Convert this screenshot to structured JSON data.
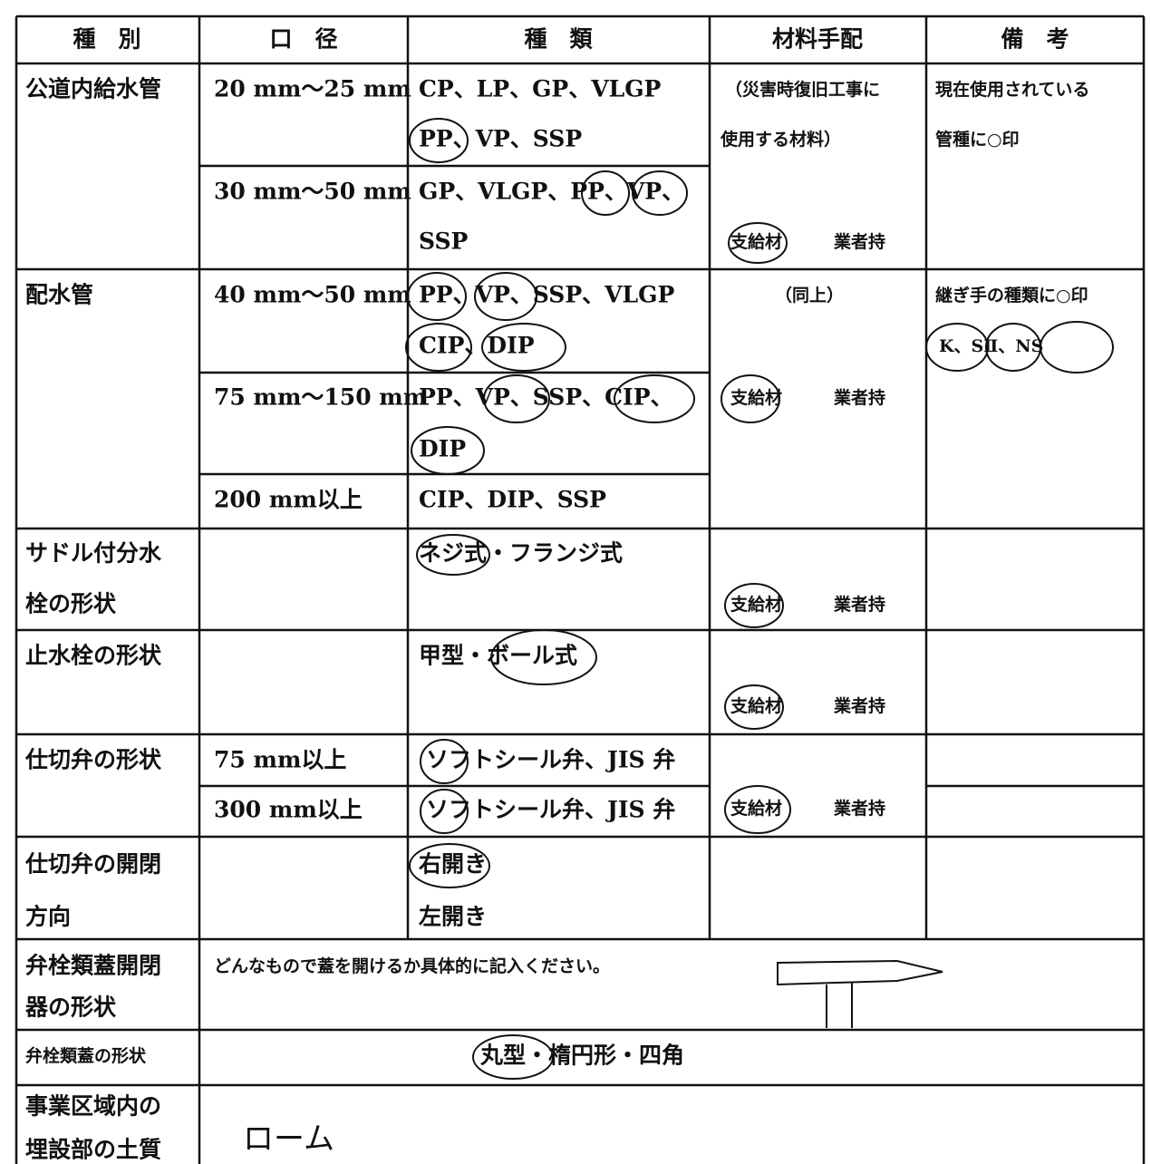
{
  "header": [
    "種　別",
    "口　径",
    "種　類",
    "材料手配",
    "備　考"
  ],
  "rows": [
    {
      "category": "公道内給水管",
      "diameters": [
        "20 mm〜25 mm",
        "30 mm〜50 mm"
      ],
      "types": [
        [
          "CP、LP、GP、VLGP",
          "PP、VP、SSP"
        ],
        [
          "GP、VLGP、PP、VP、",
          "SSP"
        ]
      ],
      "material": [
        "（災害時復旧工事に",
        "使用する材料）"
      ],
      "supply": [
        "支給材",
        "業者持"
      ],
      "remarks": [
        "現在使用されている",
        "管種に○印"
      ]
    },
    {
      "category": "配水管",
      "diameters": [
        "40 mm〜50 mm",
        "75 mm〜150 mm",
        "200 mm以上"
      ],
      "types": [
        [
          "PP、VP、SSP、VLGP",
          "CIP、DIP"
        ],
        [
          "PP、VP、SSP、CIP、",
          "DIP"
        ],
        [
          "CIP、DIP、SSP"
        ]
      ],
      "material": [
        "（同上）"
      ],
      "supply": [
        "支給材",
        "業者持"
      ],
      "remarks": [
        "継ぎ手の種類に○印",
        "K、SⅡ、NS"
      ]
    },
    {
      "category": [
        "サドル付分水",
        "栓の形状"
      ],
      "types": [
        "ネジ式・フランジ式"
      ],
      "supply": [
        "支給材",
        "業者持"
      ]
    },
    {
      "category": "止水栓の形状",
      "types": [
        "甲型・ボール式"
      ],
      "supply": [
        "支給材",
        "業者持"
      ]
    },
    {
      "category": "仕切弁の形状",
      "diameters": [
        "75 mm以上",
        "300 mm以上"
      ],
      "types": [
        "ソフトシール弁、JIS 弁",
        "ソフトシール弁、JIS 弁"
      ],
      "supply": [
        "支給材",
        "業者持"
      ]
    },
    {
      "category": [
        "仕切弁の開閉",
        "方向"
      ],
      "types": [
        "右開き",
        "左開き"
      ]
    },
    {
      "category": [
        "弁栓類蓋開閉",
        "器の形状"
      ],
      "note": "どんなもので蓋を開けるか具体的に記入ください。"
    },
    {
      "category": "弁栓類蓋の形状",
      "note": "丸型・楕円形・四角"
    },
    {
      "category": [
        "事業区域内の",
        "埋設部の土質"
      ],
      "note": "ローム"
    }
  ]
}
